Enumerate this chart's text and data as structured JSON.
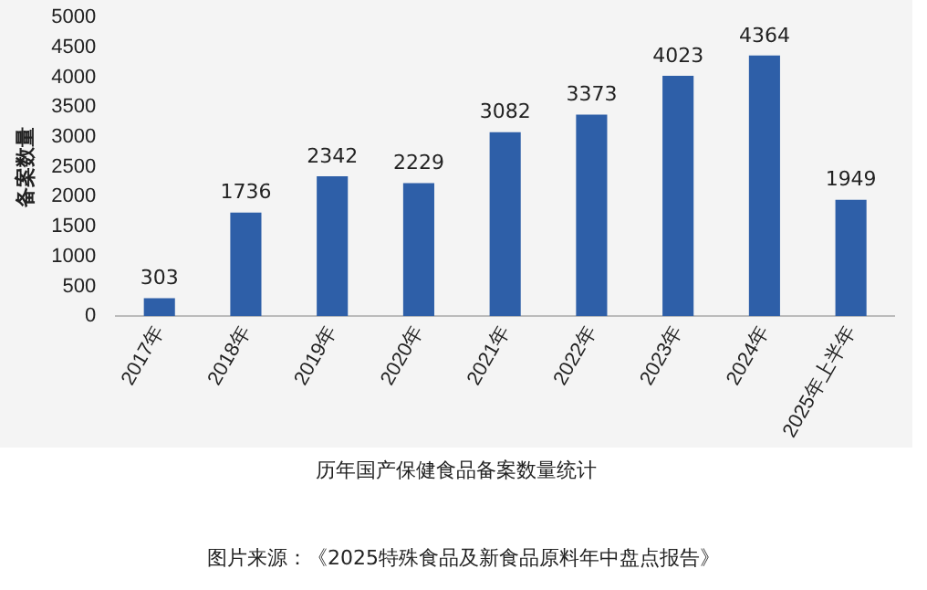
{
  "chart_data": {
    "type": "bar",
    "title": "历年国产保健食品备案数量统计",
    "ylabel": "备案数量",
    "categories": [
      "2017年",
      "2018年",
      "2019年",
      "2020年",
      "2021年",
      "2022年",
      "2023年",
      "2024年",
      "2025年上半年"
    ],
    "values": [
      303,
      1736,
      2342,
      2229,
      3082,
      3373,
      4023,
      4364,
      1949
    ],
    "color": "#2e5fa8",
    "ylim": [
      0,
      5000
    ],
    "yticks": [
      0,
      500,
      1000,
      1500,
      2000,
      2500,
      3000,
      3500,
      4000,
      4500,
      5000
    ],
    "grid": false,
    "legend": false,
    "data_labels": true,
    "annotations": [
      "图片来源：《2025特殊食品及新食品原料年中盘点报告》"
    ]
  }
}
